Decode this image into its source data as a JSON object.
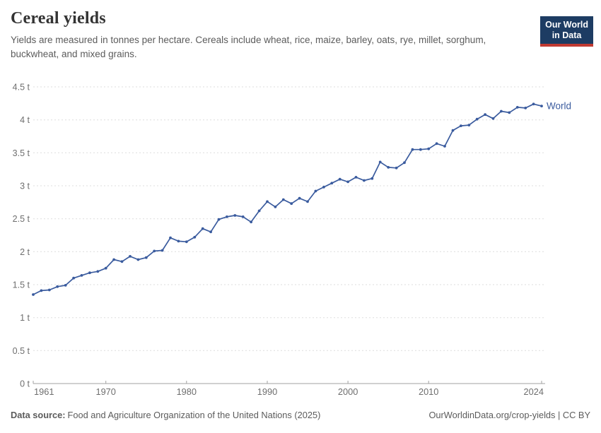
{
  "header": {
    "title": "Cereal yields",
    "subtitle": "Yields are measured in tonnes per hectare. Cereals include wheat, rice, maize, barley, oats, rye, millet, sorghum, buckwheat, and mixed grains.",
    "logo": {
      "line1": "Our World",
      "line2": "in Data"
    }
  },
  "footer": {
    "source_label": "Data source:",
    "source_text": "Food and Agriculture Organization of the United Nations (2025)",
    "credit": "OurWorldinData.org/crop-yields | CC BY"
  },
  "colors": {
    "line": "#3a5b9e",
    "logo-bg": "#1d3c63",
    "logo-red": "#c13a32",
    "grid": "#dddddd",
    "axis": "#a1a1a1",
    "tick-text": "#6e6e6e",
    "title-text": "#333333",
    "subtitle-text": "#5b5b5b",
    "footer-text": "#5b5b5b"
  },
  "chart_data": {
    "type": "line",
    "title": "Cereal yields",
    "unit": "t (tonnes per hectare)",
    "xlabel": "",
    "ylabel": "",
    "ylim": [
      0,
      4.5
    ],
    "grid": "dashed-horizontal",
    "legend": "end-of-line-label",
    "x": [
      1961,
      1962,
      1963,
      1964,
      1965,
      1966,
      1967,
      1968,
      1969,
      1970,
      1971,
      1972,
      1973,
      1974,
      1975,
      1976,
      1977,
      1978,
      1979,
      1980,
      1981,
      1982,
      1983,
      1984,
      1985,
      1986,
      1987,
      1988,
      1989,
      1990,
      1991,
      1992,
      1993,
      1994,
      1995,
      1996,
      1997,
      1998,
      1999,
      2000,
      2001,
      2002,
      2003,
      2004,
      2005,
      2006,
      2007,
      2008,
      2009,
      2010,
      2011,
      2012,
      2013,
      2014,
      2015,
      2016,
      2017,
      2018,
      2019,
      2020,
      2021,
      2022,
      2023,
      2024
    ],
    "series": [
      {
        "name": "World",
        "color": "#3a5b9e",
        "values": [
          1.35,
          1.41,
          1.42,
          1.47,
          1.49,
          1.6,
          1.64,
          1.68,
          1.7,
          1.75,
          1.88,
          1.85,
          1.93,
          1.88,
          1.91,
          2.01,
          2.02,
          2.21,
          2.16,
          2.15,
          2.22,
          2.35,
          2.3,
          2.49,
          2.53,
          2.55,
          2.53,
          2.45,
          2.62,
          2.76,
          2.68,
          2.79,
          2.73,
          2.81,
          2.76,
          2.92,
          2.98,
          3.04,
          3.1,
          3.06,
          3.13,
          3.08,
          3.11,
          3.36,
          3.28,
          3.27,
          3.35,
          3.55,
          3.55,
          3.56,
          3.64,
          3.6,
          3.84,
          3.91,
          3.92,
          4.01,
          4.08,
          4.02,
          4.13,
          4.11,
          4.19,
          4.18,
          4.24,
          4.21
        ]
      }
    ],
    "yticks": [
      {
        "value": 0,
        "label": "0 t"
      },
      {
        "value": 0.5,
        "label": "0.5 t"
      },
      {
        "value": 1,
        "label": "1 t"
      },
      {
        "value": 1.5,
        "label": "1.5 t"
      },
      {
        "value": 2,
        "label": "2 t"
      },
      {
        "value": 2.5,
        "label": "2.5 t"
      },
      {
        "value": 3,
        "label": "3 t"
      },
      {
        "value": 3.5,
        "label": "3.5 t"
      },
      {
        "value": 4,
        "label": "4 t"
      },
      {
        "value": 4.5,
        "label": "4.5 t"
      }
    ],
    "xticks": [
      {
        "year": 1961,
        "label": "1961"
      },
      {
        "year": 1970,
        "label": "1970"
      },
      {
        "year": 1980,
        "label": "1980"
      },
      {
        "year": 1990,
        "label": "1990"
      },
      {
        "year": 2000,
        "label": "2000"
      },
      {
        "year": 2010,
        "label": "2010"
      },
      {
        "year": 2024,
        "label": "2024"
      }
    ]
  }
}
